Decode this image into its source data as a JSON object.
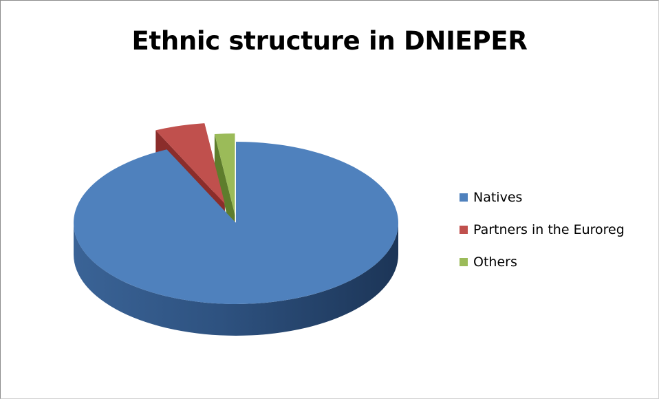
{
  "chart_data": {
    "type": "pie",
    "title": "Ethnic structure in DNIEPER",
    "categories": [
      "Natives",
      "Partners in the Euroreg",
      "Others"
    ],
    "values": [
      93,
      5,
      2
    ],
    "colors": [
      "#4F81BD",
      "#C0504D",
      "#9BBB59"
    ],
    "exploded": [
      "Partners in the Euroreg",
      "Others"
    ],
    "style": "3d",
    "legend_position": "right"
  }
}
